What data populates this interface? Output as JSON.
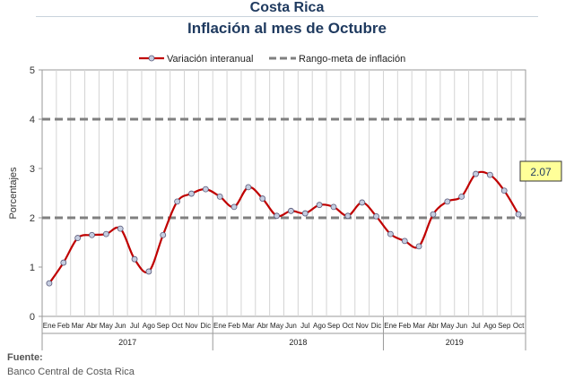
{
  "header": {
    "title": "Costa Rica",
    "subtitle": "Inflación al mes de Octubre"
  },
  "chart_data": {
    "type": "line",
    "ylabel": "Porcentajes",
    "ylim": [
      0,
      5
    ],
    "yticks": [
      0,
      1,
      2,
      3,
      4,
      5
    ],
    "grid": "vertical",
    "legend": "top",
    "months": [
      "Ene",
      "Feb",
      "Mar",
      "Abr",
      "May",
      "Jun",
      "Jul",
      "Ago",
      "Sep",
      "Oct",
      "Nov",
      "Dic",
      "Ene",
      "Feb",
      "Mar",
      "Abr",
      "May",
      "Jun",
      "Jul",
      "Ago",
      "Sep",
      "Oct",
      "Nov",
      "Dic",
      "Ene",
      "Feb",
      "Mar",
      "Abr",
      "May",
      "Jun",
      "Jul",
      "Ago",
      "Sep",
      "Oct"
    ],
    "years": [
      {
        "label": "2017",
        "start": 0,
        "count": 12
      },
      {
        "label": "2018",
        "start": 12,
        "count": 12
      },
      {
        "label": "2019",
        "start": 24,
        "count": 10
      }
    ],
    "series": [
      {
        "name": "Variación interanual",
        "color": "#c00000",
        "marker": "circle",
        "values": [
          0.67,
          1.09,
          1.59,
          1.65,
          1.67,
          1.78,
          1.16,
          0.91,
          1.65,
          2.33,
          2.49,
          2.58,
          2.43,
          2.22,
          2.62,
          2.39,
          2.04,
          2.14,
          2.09,
          2.26,
          2.22,
          2.04,
          2.31,
          2.03,
          1.67,
          1.53,
          1.42,
          2.07,
          2.33,
          2.43,
          2.89,
          2.87,
          2.55,
          2.07
        ]
      },
      {
        "name": "Rango-meta de inflación",
        "color": "#808080",
        "dashed": true,
        "lines": [
          2,
          4
        ]
      }
    ],
    "annotation": {
      "text": "2.07",
      "index": 33
    }
  },
  "footer": {
    "source_label": "Fuente:",
    "source_text": "Banco Central de Costa Rica"
  }
}
